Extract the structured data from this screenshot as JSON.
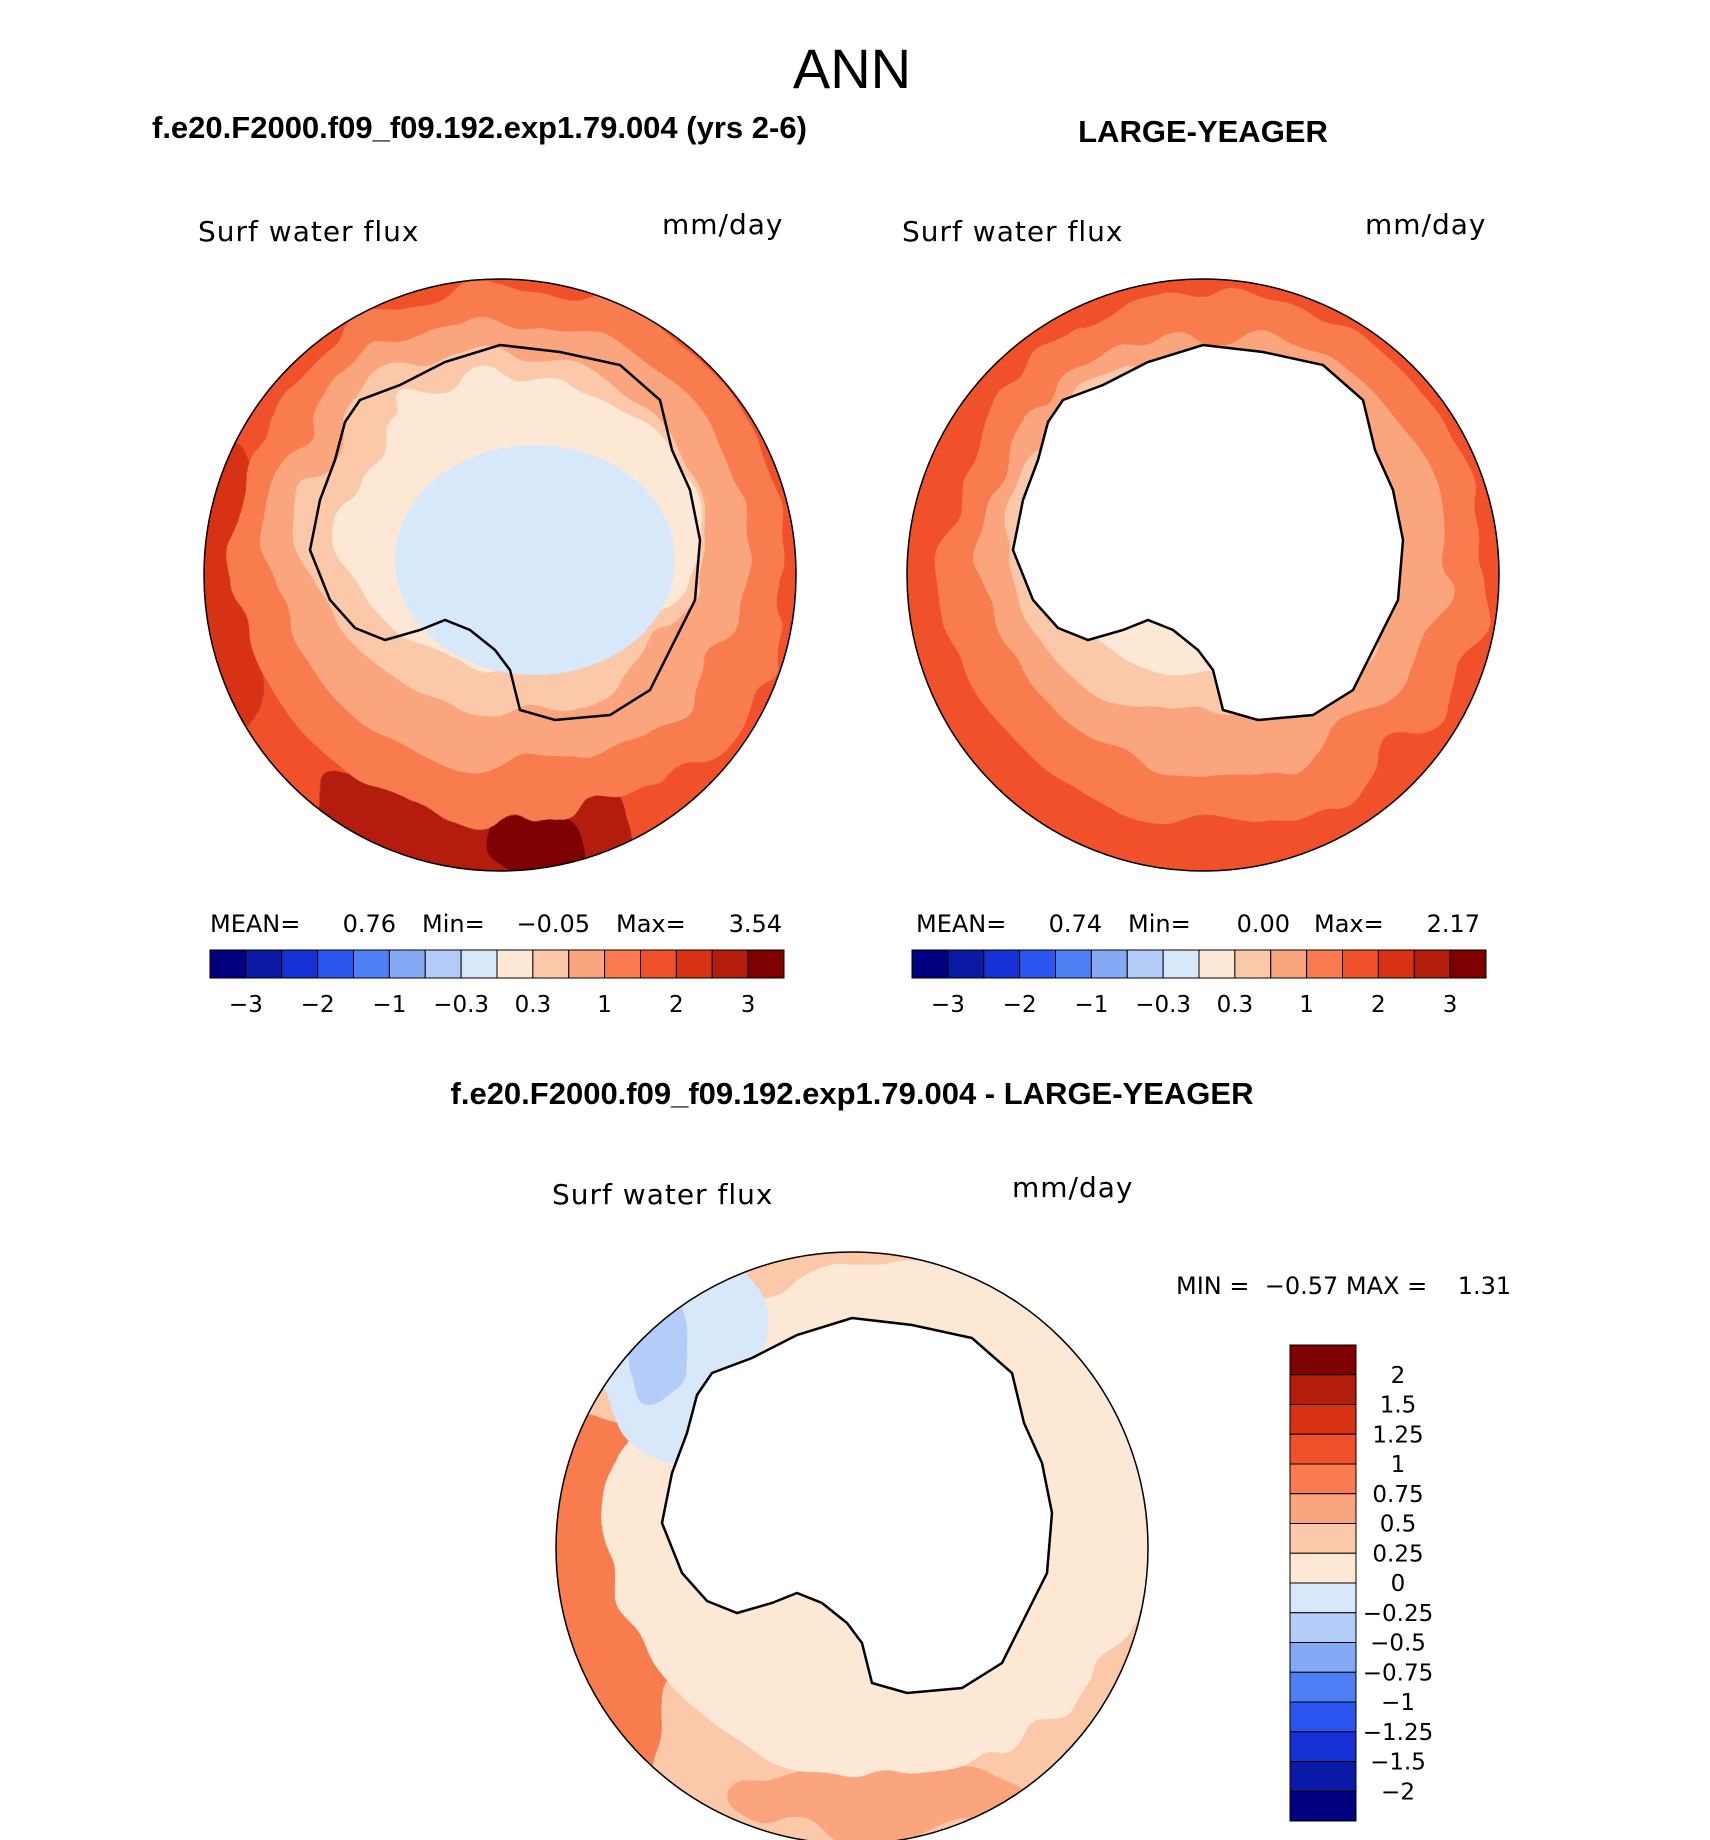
{
  "figure": {
    "title": "ANN",
    "panel_top_left_title": "f.e20.F2000.f09_f09.192.exp1.79.004 (yrs 2-6)",
    "panel_top_right_title": "LARGE-YEAGER",
    "panel_bottom_title": "f.e20.F2000.f09_f09.192.exp1.79.004 - LARGE-YEAGER"
  },
  "panels": {
    "left": {
      "variable": "Surf water flux",
      "units": "mm/day",
      "mean_label": "MEAN=",
      "mean": "0.76",
      "min_label": "Min=",
      "min": "−0.05",
      "max_label": "Max=",
      "max": "3.54"
    },
    "right": {
      "variable": "Surf water flux",
      "units": "mm/day",
      "mean_label": "MEAN=",
      "mean": "0.74",
      "min_label": "Min=",
      "min": "0.00",
      "max_label": "Max=",
      "max": "2.17"
    },
    "diff": {
      "variable": "Surf water flux",
      "units": "mm/day",
      "minmax_text": "MIN =  −0.57 MAX =    1.31"
    }
  },
  "colors": {
    "horizontal_bar": [
      "#000080",
      "#0a1aa6",
      "#1531d6",
      "#2b55f0",
      "#4f7ff5",
      "#86a9f5",
      "#b4ccf8",
      "#d8e8fb",
      "#fde7d5",
      "#fcc8aa",
      "#fba57f",
      "#f97b4f",
      "#f0512a",
      "#d83114",
      "#b41c0c",
      "#7f0000"
    ],
    "vertical_bar": [
      "#000080",
      "#0a1aa6",
      "#1531d6",
      "#2b55f0",
      "#4f7ff5",
      "#86a9f5",
      "#b4ccf8",
      "#d8e8fb",
      "#fde7d5",
      "#fcc8aa",
      "#fba57f",
      "#f97b4f",
      "#f0512a",
      "#d83114",
      "#b41c0c",
      "#7f0000"
    ],
    "land": "#ffffff",
    "coast": "#000000"
  },
  "chart_data": [
    {
      "type": "polar-contour-map",
      "title": "f.e20.F2000.f09_f09.192.exp1.79.004 (yrs 2-6)",
      "variable": "Surf water flux",
      "units": "mm/day",
      "stats": {
        "mean": 0.76,
        "min": -0.05,
        "max": 3.54
      },
      "colorbar_levels": [
        -4,
        -3,
        -2.5,
        -2,
        -1.5,
        -1,
        -0.5,
        -0.3,
        0,
        0.3,
        0.5,
        1,
        1.5,
        2,
        2.5,
        3
      ],
      "colorbar_tick_labels": [
        "−3",
        "−2",
        "−1",
        "−0.3",
        "0.3",
        "1",
        "2",
        "3"
      ]
    },
    {
      "type": "polar-contour-map",
      "title": "LARGE-YEAGER",
      "variable": "Surf water flux",
      "units": "mm/day",
      "stats": {
        "mean": 0.74,
        "min": 0.0,
        "max": 2.17
      },
      "colorbar_levels": [
        -4,
        -3,
        -2.5,
        -2,
        -1.5,
        -1,
        -0.5,
        -0.3,
        0,
        0.3,
        0.5,
        1,
        1.5,
        2,
        2.5,
        3
      ],
      "colorbar_tick_labels": [
        "−3",
        "−2",
        "−1",
        "−0.3",
        "0.3",
        "1",
        "2",
        "3"
      ]
    },
    {
      "type": "polar-contour-map",
      "title": "f.e20.F2000.f09_f09.192.exp1.79.004 - LARGE-YEAGER",
      "variable": "Surf water flux",
      "units": "mm/day",
      "stats": {
        "min": -0.57,
        "max": 1.31
      },
      "colorbar_tick_labels": [
        "2",
        "1.5",
        "1.25",
        "1",
        "0.75",
        "0.5",
        "0.25",
        "0",
        "−0.25",
        "−0.5",
        "−0.75",
        "−1",
        "−1.25",
        "−1.5",
        "−2"
      ]
    }
  ]
}
